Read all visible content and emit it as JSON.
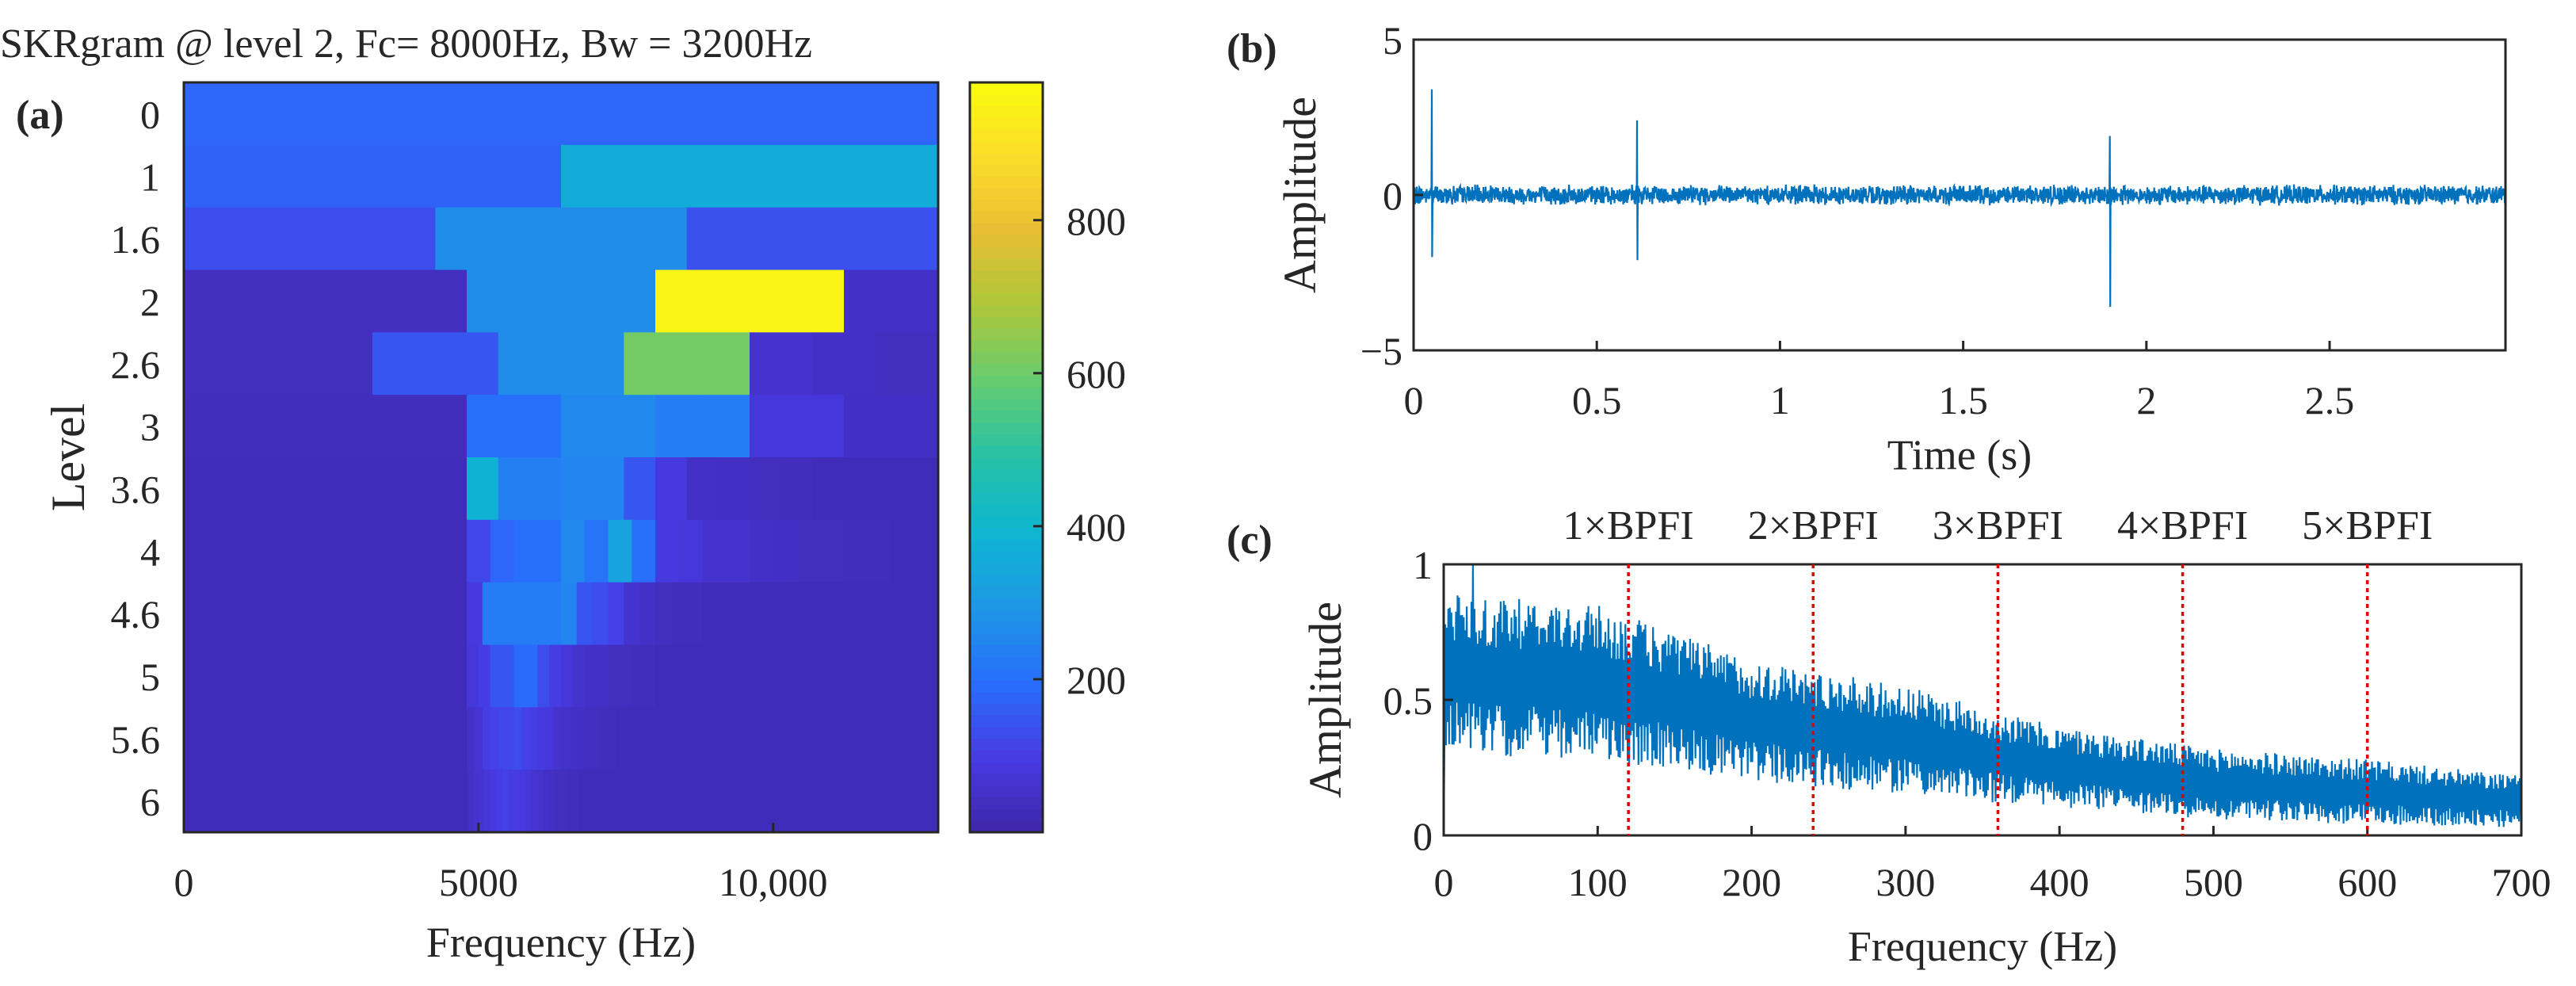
{
  "chart_data": [
    {
      "panel_label": "(a)",
      "type": "heatmap",
      "title": "SKRgram @ level 2, Fc= 8000Hz, Bw = 3200Hz",
      "xlabel": "Frequency (Hz)",
      "ylabel": "Level",
      "xlim": [
        0,
        12800
      ],
      "xticks": [
        0,
        5000,
        10000
      ],
      "xtick_labels": [
        "0",
        "5000",
        "10,000"
      ],
      "levels": [
        "0",
        "1",
        "1.6",
        "2",
        "2.6",
        "3",
        "3.6",
        "4",
        "4.6",
        "5",
        "5.6",
        "6"
      ],
      "colorbar": {
        "min": 0,
        "max": 980,
        "ticks": [
          200,
          400,
          600,
          800
        ],
        "tick_labels": [
          "200",
          "400",
          "600",
          "800"
        ]
      },
      "rows": [
        {
          "level": "0",
          "values": [
            180
          ]
        },
        {
          "level": "1",
          "values": [
            175,
            360
          ]
        },
        {
          "level": "1.6",
          "values": [
            130,
            130,
            270,
            270,
            140,
            140
          ]
        },
        {
          "level": "2",
          "values": [
            40,
            40,
            40,
            270,
            270,
            960,
            960,
            50
          ]
        },
        {
          "level": "2.6",
          "values": [
            40,
            40,
            40,
            150,
            150,
            270,
            270,
            610,
            610,
            60,
            50,
            40
          ]
        },
        {
          "level": "3",
          "values": [
            35,
            35,
            35,
            35,
            35,
            35,
            200,
            200,
            260,
            260,
            230,
            230,
            80,
            80,
            45,
            45
          ]
        },
        {
          "level": "3.6",
          "values": [
            30,
            30,
            30,
            30,
            30,
            30,
            30,
            30,
            30,
            380,
            240,
            240,
            250,
            250,
            150,
            90,
            50,
            45,
            40,
            35,
            30,
            30,
            30,
            30
          ]
        },
        {
          "level": "4",
          "values": [
            30,
            30,
            30,
            30,
            30,
            30,
            30,
            30,
            30,
            30,
            30,
            30,
            120,
            180,
            200,
            200,
            260,
            210,
            330,
            200,
            90,
            80,
            60,
            60,
            50,
            45,
            40,
            40,
            35,
            35,
            30,
            30
          ]
        },
        {
          "level": "4.6",
          "values": [
            30,
            30,
            30,
            30,
            30,
            30,
            30,
            30,
            30,
            30,
            30,
            30,
            30,
            30,
            30,
            30,
            30,
            30,
            90,
            230,
            230,
            230,
            230,
            230,
            250,
            150,
            130,
            110,
            60,
            50,
            40,
            35,
            35,
            30,
            30,
            30,
            30,
            30,
            30,
            30,
            30,
            30,
            30,
            30,
            30,
            30,
            30,
            30
          ]
        },
        {
          "level": "5",
          "values": [
            30,
            30,
            30,
            30,
            30,
            30,
            30,
            30,
            30,
            30,
            30,
            30,
            30,
            30,
            30,
            30,
            30,
            30,
            30,
            30,
            30,
            30,
            30,
            30,
            80,
            100,
            150,
            150,
            190,
            190,
            130,
            100,
            80,
            60,
            50,
            50,
            40,
            40,
            35,
            35,
            30,
            30,
            30,
            30,
            30,
            30,
            30,
            30,
            30,
            30,
            30,
            30,
            30,
            30,
            30,
            30,
            30,
            30,
            30,
            30,
            30,
            30,
            30,
            30
          ]
        },
        {
          "level": "5.6",
          "values": [
            30,
            30,
            30,
            30,
            30,
            30,
            30,
            30,
            30,
            30,
            30,
            30,
            30,
            30,
            30,
            30,
            30,
            30,
            30,
            30,
            30,
            30,
            30,
            30,
            30,
            30,
            30,
            30,
            30,
            30,
            30,
            30,
            30,
            30,
            30,
            30,
            55,
            70,
            100,
            110,
            120,
            120,
            130,
            110,
            100,
            90,
            80,
            60,
            55,
            50,
            45,
            40,
            40,
            35,
            35,
            30,
            30,
            30,
            30,
            30,
            30,
            30,
            30,
            30,
            30,
            30,
            30,
            30,
            30,
            30,
            30,
            30,
            30,
            30,
            30,
            30,
            30,
            30,
            30,
            30,
            30,
            30,
            30,
            30,
            30,
            30,
            30,
            30,
            30,
            30,
            30,
            30,
            30,
            30,
            30,
            30
          ]
        },
        {
          "level": "6",
          "values": [
            30,
            30,
            30,
            30,
            30,
            30,
            30,
            30,
            30,
            30,
            30,
            30,
            30,
            30,
            30,
            30,
            30,
            30,
            30,
            30,
            30,
            30,
            30,
            30,
            30,
            30,
            30,
            30,
            30,
            30,
            30,
            30,
            30,
            30,
            30,
            30,
            30,
            30,
            30,
            30,
            30,
            30,
            30,
            30,
            30,
            30,
            30,
            30,
            45,
            60,
            70,
            80,
            90,
            100,
            110,
            100,
            95,
            90,
            80,
            70,
            60,
            50,
            45,
            40,
            40,
            35,
            35,
            30,
            30,
            30,
            30,
            30,
            30,
            30,
            30,
            30,
            30,
            30,
            30,
            30,
            30,
            30,
            30,
            30,
            30,
            30,
            30,
            30,
            30,
            30,
            30,
            30,
            30,
            30,
            30,
            30,
            30,
            30,
            30,
            30,
            30,
            30,
            30,
            30,
            30,
            30,
            30,
            30,
            30,
            30,
            30,
            30,
            30,
            30,
            30,
            30,
            30,
            30,
            30,
            30,
            30,
            30,
            30,
            30,
            30,
            30,
            30,
            30
          ]
        }
      ]
    },
    {
      "panel_label": "(b)",
      "type": "line",
      "xlabel": "Time (s)",
      "ylabel": "Amplitude",
      "xlim": [
        0,
        2.98
      ],
      "ylim": [
        -5,
        5
      ],
      "xticks": [
        0,
        0.5,
        1,
        1.5,
        2,
        2.5
      ],
      "xtick_labels": [
        "0",
        "0.5",
        "1",
        "1.5",
        "2",
        "2.5"
      ],
      "yticks": [
        -5,
        0,
        5
      ],
      "ytick_labels": [
        "−5",
        "0",
        "5"
      ],
      "color": "#0072bd",
      "noise_band": [
        -0.35,
        0.35
      ],
      "impulses": [
        {
          "t": 0.05,
          "max": 3.4,
          "min": -2.0
        },
        {
          "t": 0.61,
          "max": 2.4,
          "min": -2.1
        },
        {
          "t": 1.9,
          "max": 1.9,
          "min": -3.6
        }
      ]
    },
    {
      "panel_label": "(c)",
      "type": "line",
      "xlabel": "Frequency (Hz)",
      "ylabel": "Amplitude",
      "xlim": [
        0,
        700
      ],
      "ylim": [
        0,
        1
      ],
      "xticks": [
        0,
        100,
        200,
        300,
        400,
        500,
        600,
        700
      ],
      "xtick_labels": [
        "0",
        "100",
        "200",
        "300",
        "400",
        "500",
        "600",
        "700"
      ],
      "yticks": [
        0,
        0.5,
        1
      ],
      "ytick_labels": [
        "0",
        "0.5",
        "1"
      ],
      "color": "#0072bd",
      "envelope": [
        {
          "f": 0,
          "top": 0.9,
          "bottom": 0.3
        },
        {
          "f": 100,
          "top": 0.85,
          "bottom": 0.28
        },
        {
          "f": 200,
          "top": 0.65,
          "bottom": 0.2
        },
        {
          "f": 300,
          "top": 0.55,
          "bottom": 0.15
        },
        {
          "f": 400,
          "top": 0.4,
          "bottom": 0.1
        },
        {
          "f": 500,
          "top": 0.32,
          "bottom": 0.06
        },
        {
          "f": 600,
          "top": 0.28,
          "bottom": 0.04
        },
        {
          "f": 700,
          "top": 0.22,
          "bottom": 0.03
        }
      ],
      "marker_color": "#e00000",
      "markers": [
        {
          "label": "1×BPFI",
          "f": 120
        },
        {
          "label": "2×BPFI",
          "f": 240
        },
        {
          "label": "3×BPFI",
          "f": 360
        },
        {
          "label": "4×BPFI",
          "f": 480
        },
        {
          "label": "5×BPFI",
          "f": 600
        }
      ]
    }
  ]
}
